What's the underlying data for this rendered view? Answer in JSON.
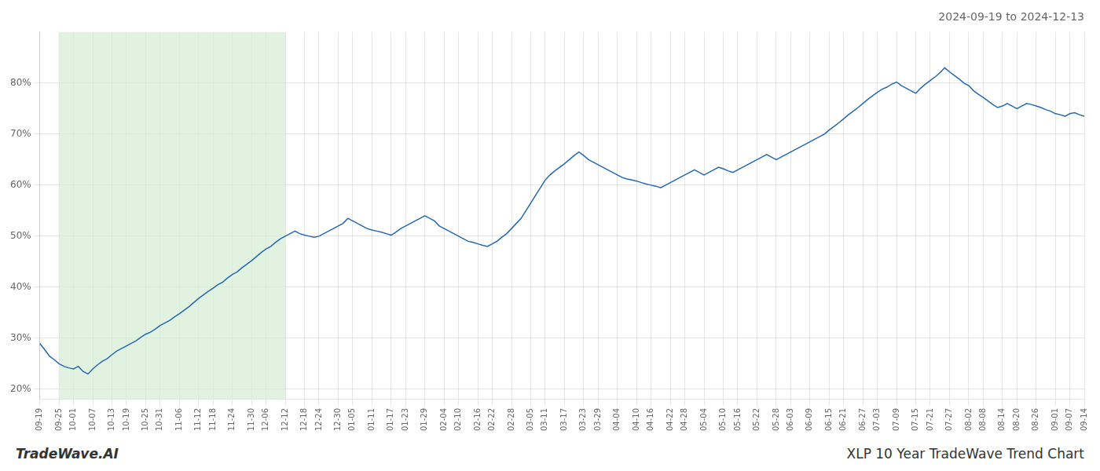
{
  "chart_data": {
    "type": "line",
    "title": "2024-09-19 to 2024-12-13",
    "categories": [
      "09-19",
      null,
      null,
      null,
      "09-25",
      null,
      null,
      "10-01",
      null,
      null,
      null,
      "10-07",
      null,
      null,
      null,
      "10-13",
      null,
      null,
      "10-19",
      null,
      null,
      null,
      "10-25",
      null,
      null,
      "10-31",
      null,
      null,
      null,
      "11-06",
      null,
      null,
      null,
      "11-12",
      null,
      null,
      "11-18",
      null,
      null,
      null,
      "11-24",
      null,
      null,
      null,
      "11-30",
      null,
      null,
      "12-06",
      null,
      null,
      null,
      "12-12",
      null,
      null,
      null,
      "12-18",
      null,
      null,
      "12-24",
      null,
      null,
      null,
      "12-30",
      null,
      null,
      "01-05",
      null,
      null,
      null,
      "01-11",
      null,
      null,
      null,
      "01-17",
      null,
      null,
      "01-23",
      null,
      null,
      null,
      "01-29",
      null,
      null,
      null,
      "02-04",
      null,
      null,
      "02-10",
      null,
      null,
      null,
      "02-16",
      null,
      null,
      "02-22",
      null,
      null,
      null,
      "02-28",
      null,
      null,
      null,
      "03-05",
      null,
      null,
      "03-11",
      null,
      null,
      null,
      "03-17",
      null,
      null,
      null,
      "03-23",
      null,
      null,
      "03-29",
      null,
      null,
      null,
      "04-04",
      null,
      null,
      null,
      "04-10",
      null,
      null,
      "04-16",
      null,
      null,
      null,
      "04-22",
      null,
      null,
      "04-28",
      null,
      null,
      null,
      "05-04",
      null,
      null,
      null,
      "05-10",
      null,
      null,
      "05-16",
      null,
      null,
      null,
      "05-22",
      null,
      null,
      null,
      "05-28",
      null,
      null,
      "06-03",
      null,
      null,
      null,
      "06-09",
      null,
      null,
      null,
      "06-15",
      null,
      null,
      "06-21",
      null,
      null,
      null,
      "06-27",
      null,
      null,
      "07-03",
      null,
      null,
      null,
      "07-09",
      null,
      null,
      null,
      "07-15",
      null,
      null,
      "07-21",
      null,
      null,
      null,
      "07-27",
      null,
      null,
      null,
      "08-02",
      null,
      null,
      "08-08",
      null,
      null,
      null,
      "08-14",
      null,
      null,
      "08-20",
      null,
      null,
      null,
      "08-26",
      null,
      null,
      null,
      "09-01",
      null,
      null,
      "09-07",
      null,
      null,
      "09-14"
    ],
    "values": [
      29.0,
      27.8,
      26.5,
      25.8,
      25.0,
      24.5,
      24.2,
      24.0,
      24.5,
      23.5,
      23.0,
      24.0,
      24.8,
      25.5,
      26.0,
      26.8,
      27.5,
      28.0,
      28.5,
      29.0,
      29.5,
      30.2,
      30.8,
      31.2,
      31.8,
      32.5,
      33.0,
      33.5,
      34.2,
      34.8,
      35.5,
      36.2,
      37.0,
      37.8,
      38.5,
      39.2,
      39.8,
      40.5,
      41.0,
      41.8,
      42.5,
      43.0,
      43.8,
      44.5,
      45.2,
      46.0,
      46.8,
      47.5,
      48.0,
      48.8,
      49.5,
      50.0,
      50.5,
      51.0,
      50.5,
      50.2,
      50.0,
      49.8,
      50.0,
      50.5,
      51.0,
      51.5,
      52.0,
      52.5,
      53.5,
      53.0,
      52.5,
      52.0,
      51.5,
      51.2,
      51.0,
      50.8,
      50.5,
      50.2,
      50.8,
      51.5,
      52.0,
      52.5,
      53.0,
      53.5,
      54.0,
      53.5,
      53.0,
      52.0,
      51.5,
      51.0,
      50.5,
      50.0,
      49.5,
      49.0,
      48.8,
      48.5,
      48.2,
      48.0,
      48.5,
      49.0,
      49.8,
      50.5,
      51.5,
      52.5,
      53.5,
      55.0,
      56.5,
      58.0,
      59.5,
      61.0,
      62.0,
      62.8,
      63.5,
      64.2,
      65.0,
      65.8,
      66.5,
      65.8,
      65.0,
      64.5,
      64.0,
      63.5,
      63.0,
      62.5,
      62.0,
      61.5,
      61.2,
      61.0,
      60.8,
      60.5,
      60.2,
      60.0,
      59.8,
      59.5,
      60.0,
      60.5,
      61.0,
      61.5,
      62.0,
      62.5,
      63.0,
      62.5,
      62.0,
      62.5,
      63.0,
      63.5,
      63.2,
      62.8,
      62.5,
      63.0,
      63.5,
      64.0,
      64.5,
      65.0,
      65.5,
      66.0,
      65.5,
      65.0,
      65.5,
      66.0,
      66.5,
      67.0,
      67.5,
      68.0,
      68.5,
      69.0,
      69.5,
      70.0,
      70.8,
      71.5,
      72.2,
      73.0,
      73.8,
      74.5,
      75.2,
      76.0,
      76.8,
      77.5,
      78.2,
      78.8,
      79.2,
      79.8,
      80.2,
      79.5,
      79.0,
      78.5,
      78.0,
      79.0,
      79.8,
      80.5,
      81.2,
      82.0,
      83.0,
      82.2,
      81.5,
      80.8,
      80.0,
      79.5,
      78.5,
      77.8,
      77.2,
      76.5,
      75.8,
      75.2,
      75.5,
      76.0,
      75.5,
      75.0,
      75.5,
      76.0,
      75.8,
      75.5,
      75.2,
      74.8,
      74.5,
      74.0,
      73.8,
      73.5,
      74.0,
      74.2,
      73.8,
      73.5
    ],
    "color": "#2468b4",
    "ylim": [
      18,
      90
    ],
    "yticks": [
      {
        "value": 20,
        "label": "20%"
      },
      {
        "value": 30,
        "label": "30%"
      },
      {
        "value": 40,
        "label": "40%"
      },
      {
        "value": 50,
        "label": "50%"
      },
      {
        "value": 60,
        "label": "60%"
      },
      {
        "value": 70,
        "label": "70%"
      },
      {
        "value": 80,
        "label": "80%"
      }
    ],
    "grid": true,
    "shaded_span": {
      "from": "09-25",
      "to": "12-12",
      "color": "#d4ecd4"
    },
    "annotations": [
      "TradeWave.AI",
      "XLP 10 Year TradeWave Trend Chart"
    ]
  }
}
